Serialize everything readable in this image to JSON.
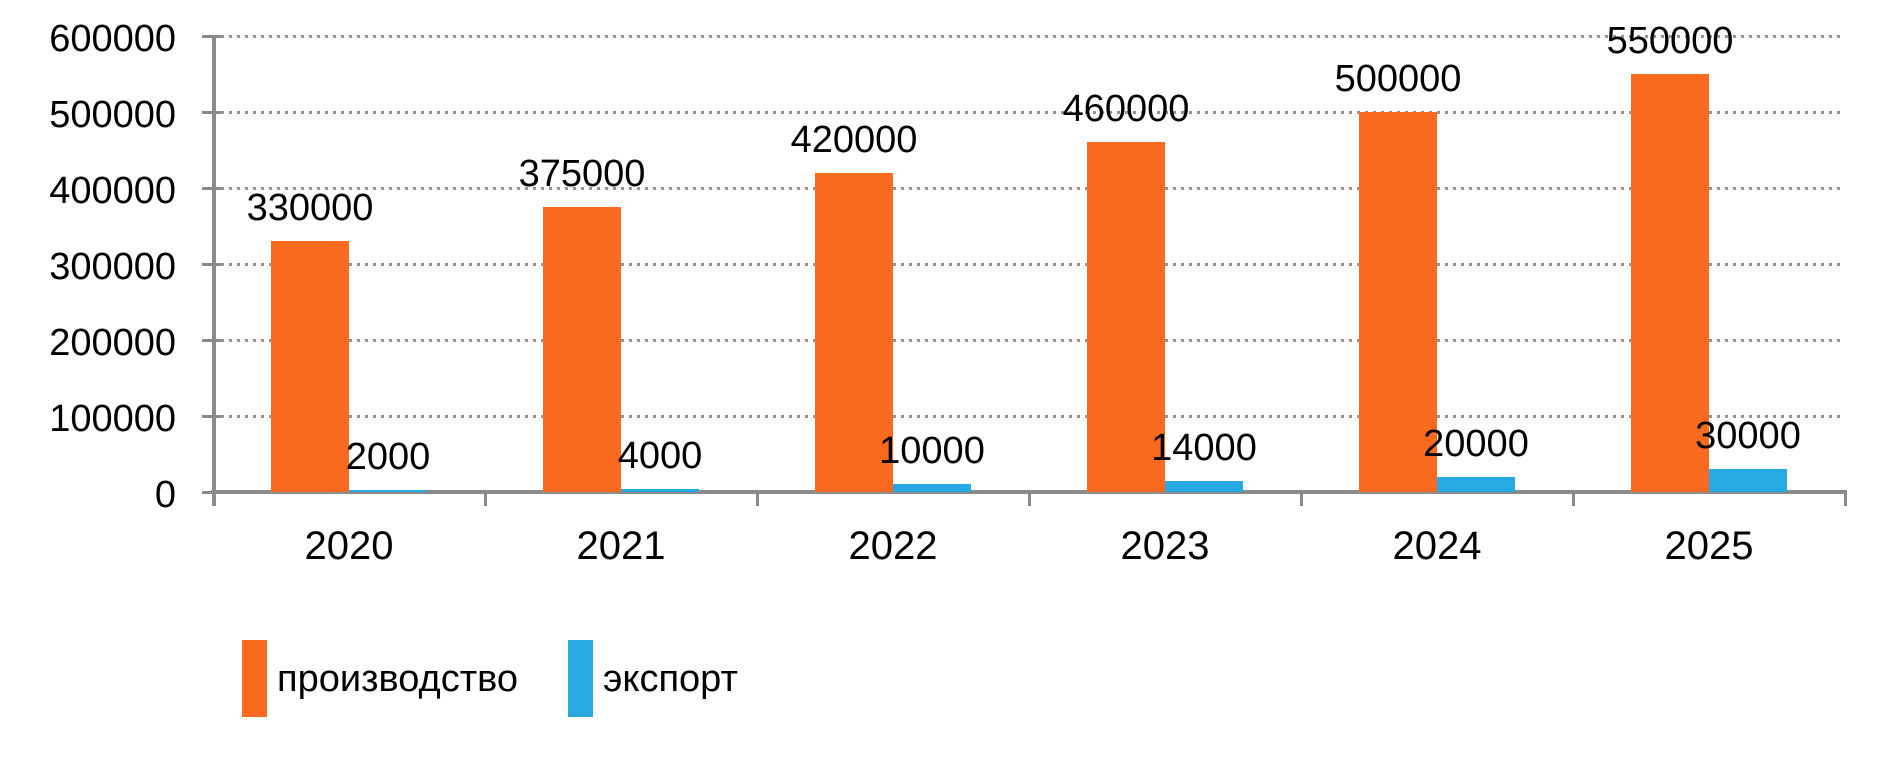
{
  "chart_data": {
    "type": "bar",
    "title": "",
    "xlabel": "",
    "ylabel": "",
    "categories": [
      "2020",
      "2021",
      "2022",
      "2023",
      "2024",
      "2025"
    ],
    "series": [
      {
        "name": "производство",
        "color": "#F96A1E",
        "values": [
          330000,
          375000,
          420000,
          460000,
          500000,
          550000
        ]
      },
      {
        "name": "экспорт",
        "color": "#29A9E1",
        "values": [
          2000,
          4000,
          10000,
          14000,
          20000,
          30000
        ]
      }
    ],
    "value_labels_shown": true,
    "ylim": [
      0,
      600000
    ],
    "ytick_interval": 100000,
    "ytick_labels": [
      "600000",
      "500000",
      "400000",
      "300000",
      "200000",
      "100000",
      "0"
    ],
    "grid": "horizontal-dotted",
    "legend_position": "bottom-left"
  },
  "legend": {
    "entries": [
      "производство",
      "экспорт"
    ]
  },
  "colors": {
    "production_bar": "#F96A1E",
    "export_bar": "#29A9E1",
    "axis": "#8A8A8A",
    "gridline": "#949494",
    "text": "#000000",
    "background": "#FFFFFF"
  }
}
